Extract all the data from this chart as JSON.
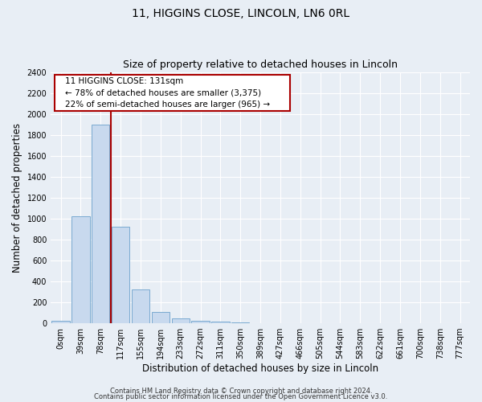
{
  "title": "11, HIGGINS CLOSE, LINCOLN, LN6 0RL",
  "subtitle": "Size of property relative to detached houses in Lincoln",
  "xlabel": "Distribution of detached houses by size in Lincoln",
  "ylabel": "Number of detached properties",
  "bar_labels": [
    "0sqm",
    "39sqm",
    "78sqm",
    "117sqm",
    "155sqm",
    "194sqm",
    "233sqm",
    "272sqm",
    "311sqm",
    "350sqm",
    "389sqm",
    "427sqm",
    "466sqm",
    "505sqm",
    "544sqm",
    "583sqm",
    "622sqm",
    "661sqm",
    "700sqm",
    "738sqm",
    "777sqm"
  ],
  "bar_values": [
    25,
    1025,
    1900,
    920,
    320,
    110,
    50,
    25,
    15,
    5,
    0,
    0,
    0,
    0,
    0,
    0,
    0,
    0,
    0,
    0,
    0
  ],
  "bar_color": "#c8d9ee",
  "bar_edgecolor": "#7aaad0",
  "vline_x": 2.5,
  "vline_color": "#aa0000",
  "annotation_box_text": "11 HIGGINS CLOSE: 131sqm\n← 78% of detached houses are smaller (3,375)\n22% of semi-detached houses are larger (965) →",
  "ylim": [
    0,
    2400
  ],
  "yticks": [
    0,
    200,
    400,
    600,
    800,
    1000,
    1200,
    1400,
    1600,
    1800,
    2000,
    2200,
    2400
  ],
  "footer_line1": "Contains HM Land Registry data © Crown copyright and database right 2024.",
  "footer_line2": "Contains public sector information licensed under the Open Government Licence v3.0.",
  "background_color": "#e8eef5",
  "grid_color": "#ffffff",
  "title_fontsize": 10,
  "subtitle_fontsize": 9,
  "axis_label_fontsize": 8.5,
  "tick_fontsize": 7,
  "footer_fontsize": 6,
  "annot_fontsize": 7.5
}
